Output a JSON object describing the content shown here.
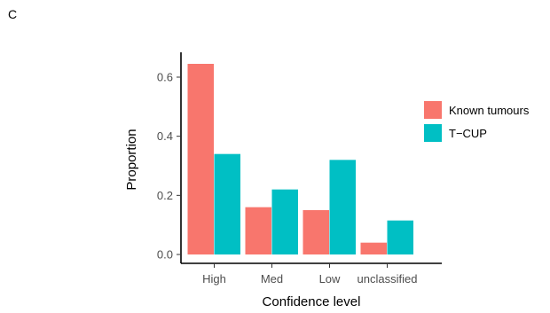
{
  "panel_label": "C",
  "chart_data": {
    "type": "bar",
    "title": "",
    "xlabel": "Confidence level",
    "ylabel": "Proportion",
    "categories": [
      "High",
      "Med",
      "Low",
      "unclassified"
    ],
    "ylim": [
      0,
      0.66
    ],
    "yticks": [
      0.0,
      0.2,
      0.4,
      0.6
    ],
    "ytick_labels": [
      "0.0",
      "0.2",
      "0.4",
      "0.6"
    ],
    "series": [
      {
        "name": "Known tumours",
        "color": "#F8766D",
        "values": [
          0.645,
          0.16,
          0.15,
          0.04
        ]
      },
      {
        "name": "T−CUP",
        "color": "#00BFC4",
        "values": [
          0.34,
          0.22,
          0.32,
          0.115
        ]
      }
    ],
    "legend_position": "right",
    "grid": false
  }
}
